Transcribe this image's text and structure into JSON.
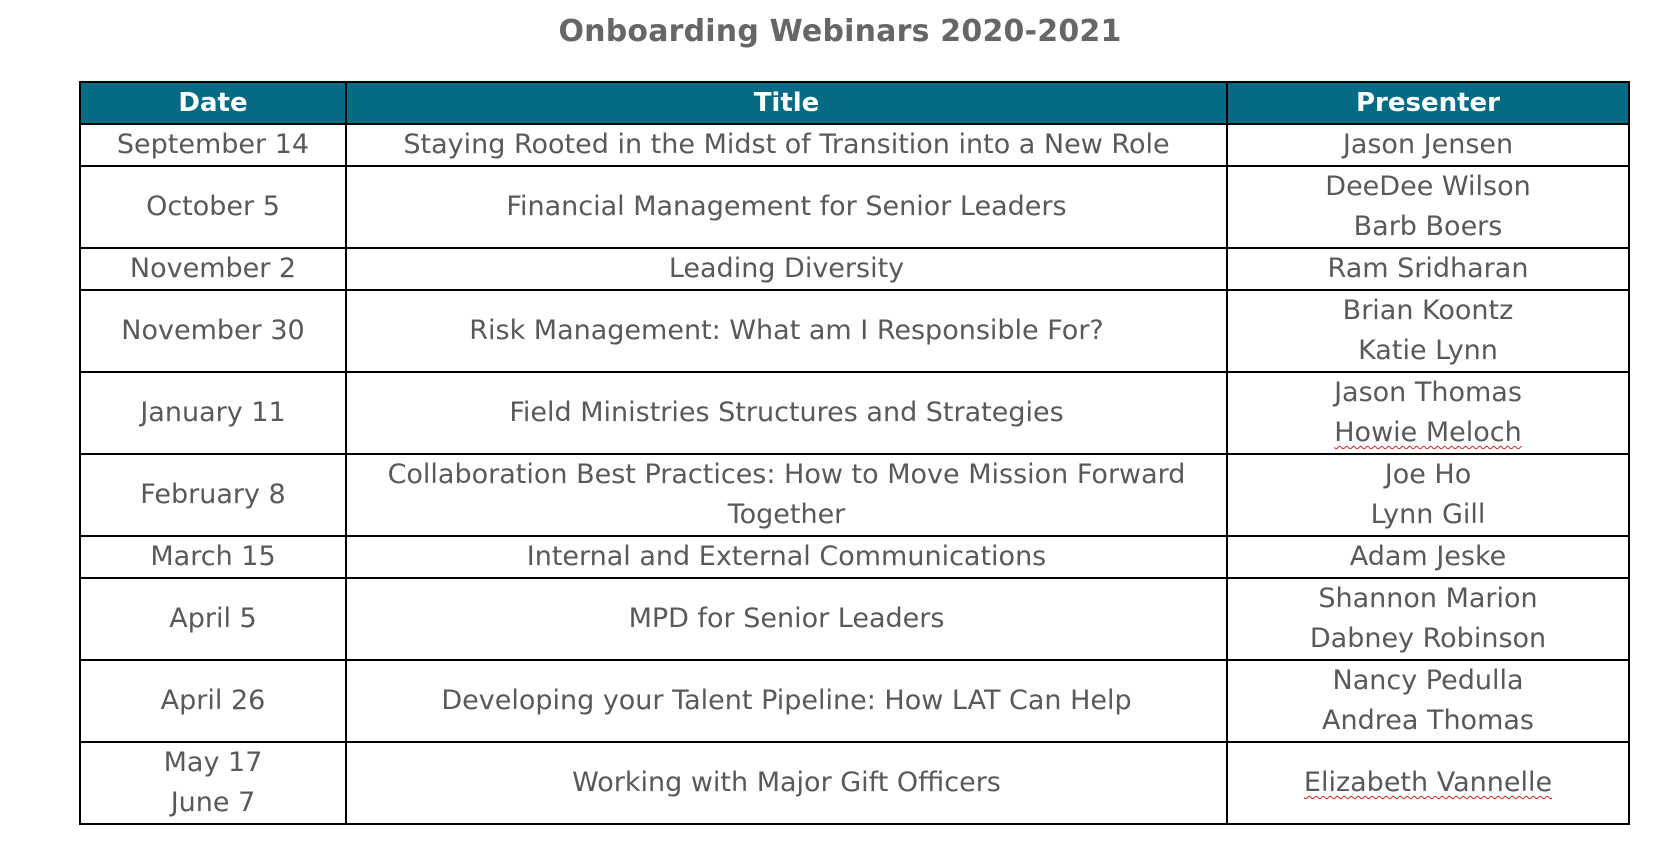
{
  "document": {
    "title": "Onboarding Webinars 2020-2021"
  },
  "table": {
    "headers": {
      "date": "Date",
      "title": "Title",
      "presenter": "Presenter"
    },
    "rows": [
      {
        "date": [
          "September 14"
        ],
        "title": [
          "Staying Rooted in the Midst of Transition into a New Role"
        ],
        "presenter": [
          "Jason Jensen"
        ]
      },
      {
        "date": [
          "October 5"
        ],
        "title": [
          "Financial Management for Senior Leaders"
        ],
        "presenter": [
          "DeeDee Wilson",
          "Barb Boers"
        ]
      },
      {
        "date": [
          "November 2"
        ],
        "title": [
          "Leading Diversity"
        ],
        "presenter": [
          "Ram Sridharan"
        ]
      },
      {
        "date": [
          "November 30"
        ],
        "title": [
          "Risk Management: What am I Responsible For?"
        ],
        "presenter": [
          "Brian Koontz",
          "Katie Lynn"
        ]
      },
      {
        "date": [
          "January 11"
        ],
        "title": [
          "Field Ministries Structures and Strategies"
        ],
        "presenter": [
          "Jason Thomas",
          "Howie Meloch"
        ]
      },
      {
        "date": [
          "February 8"
        ],
        "title": [
          "Collaboration Best Practices: How to Move Mission Forward",
          "Together"
        ],
        "presenter": [
          "Joe Ho",
          "Lynn Gill"
        ]
      },
      {
        "date": [
          "March 15"
        ],
        "title": [
          "Internal and External Communications"
        ],
        "presenter": [
          "Adam Jeske"
        ]
      },
      {
        "date": [
          "April 5"
        ],
        "title": [
          "MPD for Senior Leaders"
        ],
        "presenter": [
          "Shannon Marion",
          "Dabney Robinson"
        ]
      },
      {
        "date": [
          "April 26"
        ],
        "title": [
          "Developing your Talent Pipeline: How LAT Can Help"
        ],
        "presenter": [
          "Nancy Pedulla",
          "Andrea Thomas"
        ]
      },
      {
        "date": [
          "May 17",
          "June 7"
        ],
        "title": [
          "Working with Major Gift Officers"
        ],
        "presenter": [
          "Elizabeth Vannelle"
        ]
      }
    ]
  }
}
